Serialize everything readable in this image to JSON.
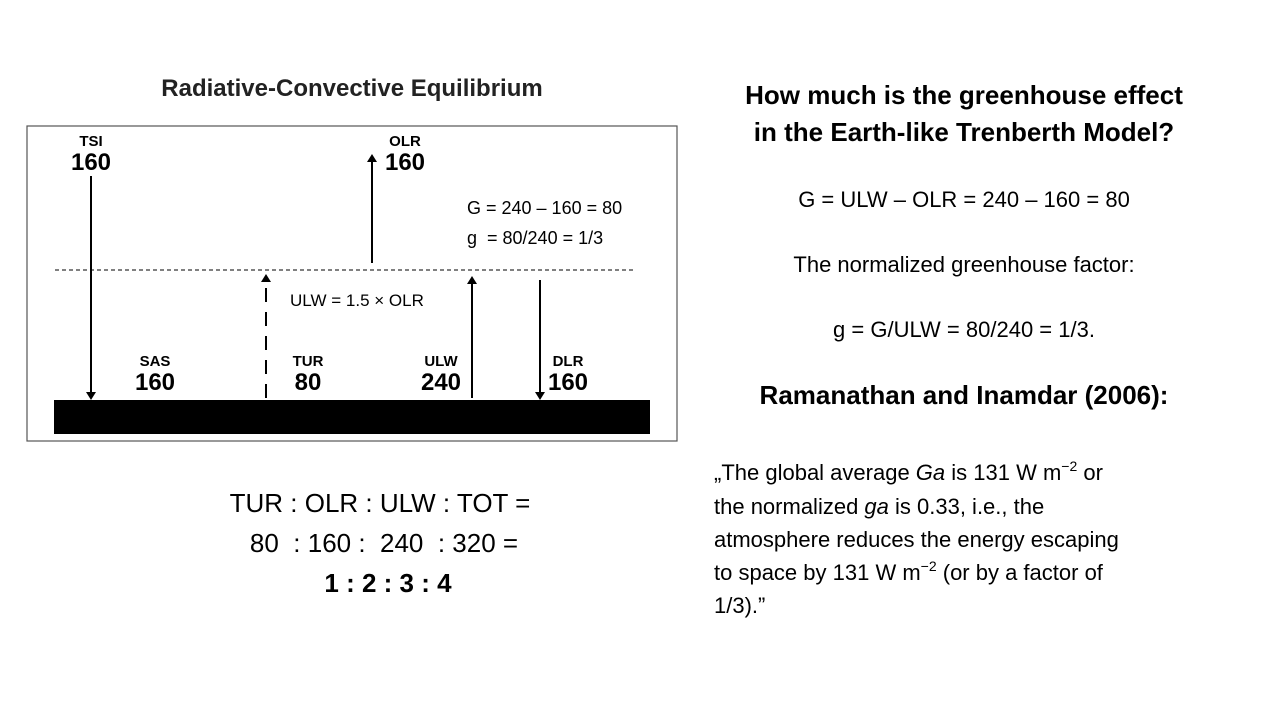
{
  "diagram": {
    "title": "Radiative-Convective Equilibrium",
    "top": {
      "tsi_label": "TSI",
      "tsi_value": "160",
      "olr_label": "OLR",
      "olr_value": "160"
    },
    "equations": [
      "G = 240 – 160 = 80",
      "g  = 80/240 = 1/3"
    ],
    "ulw_note": "ULW = 1.5 × OLR",
    "surface": [
      {
        "label": "SAS",
        "value": "160"
      },
      {
        "label": "TUR",
        "value": "80"
      },
      {
        "label": "ULW",
        "value": "240"
      },
      {
        "label": "DLR",
        "value": "160"
      }
    ]
  },
  "ratio": [
    "TUR : OLR : ULW : TOT =",
    "80  : 160 :  240  : 320 =",
    "1 : 2 : 3 : 4"
  ],
  "right": {
    "heading": [
      "How much is the greenhouse effect",
      "in the Earth-like Trenberth Model?"
    ],
    "g_equation": "G = ULW – OLR = 240 – 160 = 80",
    "normalized_label": "The normalized greenhouse factor:",
    "normalized_equation": "g = G/ULW = 80/240 = 1/3.",
    "reference": "Ramanathan and Inamdar (2006):",
    "quote": [
      [
        "„The global average ",
        "Ga",
        " is 131 W m",
        "−2",
        " or"
      ],
      [
        "the normalized ",
        "ga",
        " is 0.33, i.e., the"
      ],
      [
        "atmosphere reduces the energy escaping"
      ],
      [
        "to space by 131 W m",
        "−2",
        " (or by a factor of"
      ],
      [
        "1/3).”"
      ]
    ]
  }
}
